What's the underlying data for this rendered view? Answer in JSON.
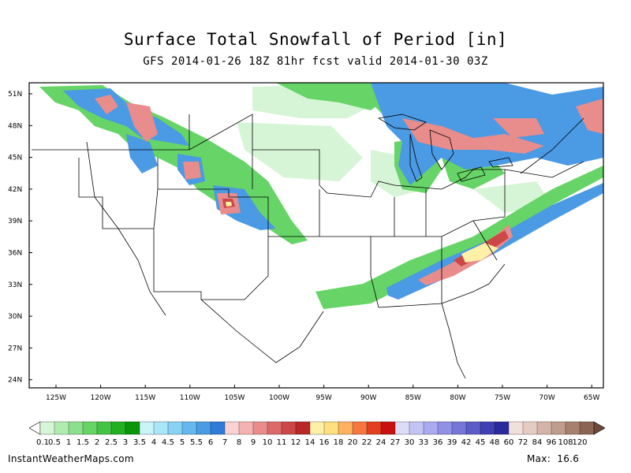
{
  "title": "Surface Total Snowfall of Period [in]",
  "subtitle": "GFS 2014-01-26 18Z 81hr fcst valid 2014-01-30 03Z",
  "lat_labels": [
    "51N",
    "48N",
    "45N",
    "42N",
    "39N",
    "36N",
    "33N",
    "30N",
    "27N",
    "24N"
  ],
  "lon_labels": [
    "125W",
    "120W",
    "115W",
    "110W",
    "105W",
    "100W",
    "95W",
    "90W",
    "85W",
    "80W",
    "75W",
    "70W",
    "65W"
  ],
  "legend": {
    "labels": [
      "0.1",
      "0.5",
      "1",
      "1.5",
      "2",
      "2.5",
      "3",
      "3.5",
      "4",
      "4.5",
      "5",
      "5.5",
      "6",
      "7",
      "8",
      "9",
      "10",
      "11",
      "12",
      "14",
      "16",
      "18",
      "20",
      "22",
      "24",
      "27",
      "30",
      "33",
      "36",
      "39",
      "42",
      "45",
      "48",
      "60",
      "72",
      "84",
      "96",
      "108",
      "120"
    ],
    "colors": [
      "#d6f5d6",
      "#b0ecb0",
      "#8ce08c",
      "#66d466",
      "#44c444",
      "#22b022",
      "#0a960a",
      "#c8f4fa",
      "#a8e6f8",
      "#88d2f4",
      "#64b8ee",
      "#4a9ae4",
      "#2e7cd8",
      "#fad2d2",
      "#f4b2b2",
      "#e88c8c",
      "#dc6a6a",
      "#cc4848",
      "#b82828",
      "#fff0a8",
      "#ffe080",
      "#ffb060",
      "#f47840",
      "#e44020",
      "#c81010",
      "#dcdcf8",
      "#c4c4f4",
      "#aaaaee",
      "#9090e4",
      "#7676d8",
      "#5c5cc8",
      "#4040b4",
      "#2a2a9c",
      "#f0e0dc",
      "#e4ccc4",
      "#d4b4a8",
      "#c09c8c",
      "#a88070",
      "#8c6454"
    ]
  },
  "credit": "InstantWeatherMaps.com",
  "max_label": "Max:",
  "max_value": "16.6",
  "colors": {
    "state_lines": "#000000",
    "background": "#ffffff"
  }
}
